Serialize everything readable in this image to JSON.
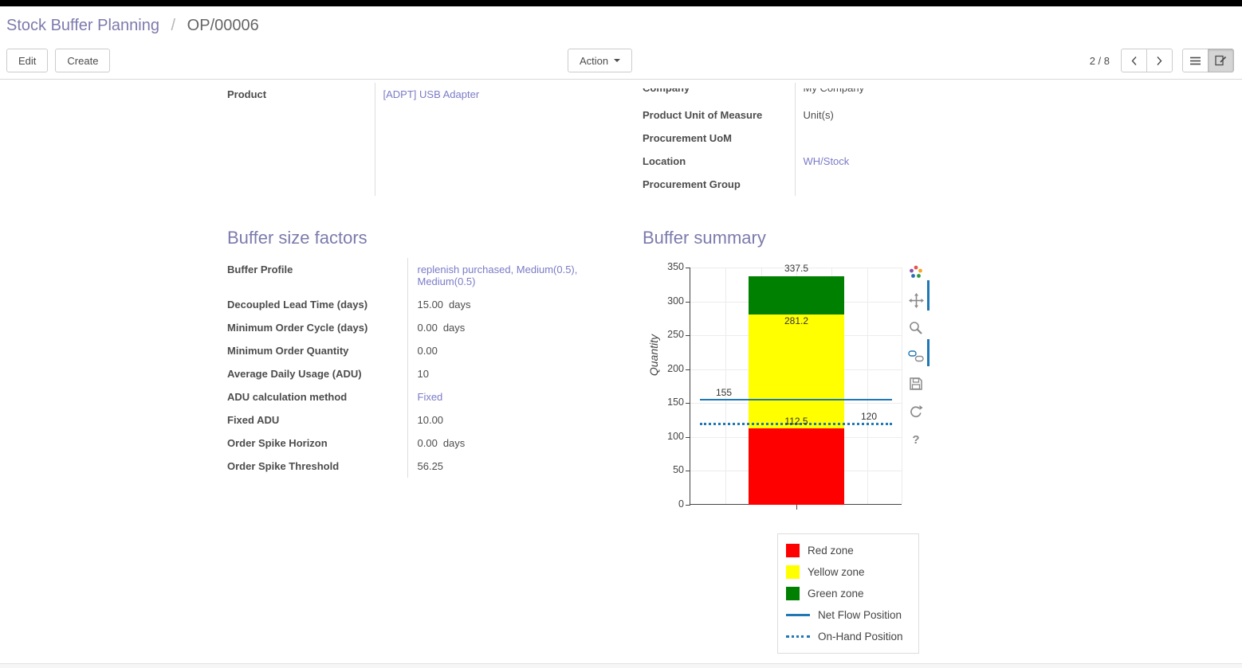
{
  "breadcrumb": {
    "parent": "Stock Buffer Planning",
    "separator": "/",
    "current": "OP/00006"
  },
  "control_panel": {
    "edit_label": "Edit",
    "create_label": "Create",
    "action_label": "Action",
    "pager_value": "2 / 8"
  },
  "form": {
    "general_left": [
      {
        "label": "Product",
        "value": "[ADPT] USB Adapter",
        "link": true
      }
    ],
    "general_right": [
      {
        "label": "Company",
        "value": "My Company",
        "clipped": true
      },
      {
        "label": "Product Unit of Measure",
        "value": "Unit(s)"
      },
      {
        "label": "Procurement UoM",
        "value": ""
      },
      {
        "label": "Location",
        "value": "WH/Stock",
        "link": true
      },
      {
        "label": "Procurement Group",
        "value": ""
      }
    ],
    "factors": {
      "title": "Buffer size factors",
      "rows": [
        {
          "label": "Buffer Profile",
          "value": "replenish purchased, Medium(0.5), Medium(0.5)",
          "link": true
        },
        {
          "label": "Decoupled Lead Time (days)",
          "value": "15.00",
          "suffix": "days"
        },
        {
          "label": "Minimum Order Cycle (days)",
          "value": "0.00",
          "suffix": "days"
        },
        {
          "label": "Minimum Order Quantity",
          "value": "0.00"
        },
        {
          "label": "Average Daily Usage (ADU)",
          "value": "10"
        },
        {
          "label": "ADU calculation method",
          "value": "Fixed",
          "link": true
        },
        {
          "label": "Fixed ADU",
          "value": "10.00"
        },
        {
          "label": "Order Spike Horizon",
          "value": "0.00",
          "suffix": "days"
        },
        {
          "label": "Order Spike Threshold",
          "value": "56.25"
        }
      ]
    },
    "summary": {
      "title": "Buffer summary"
    }
  },
  "chart_data": {
    "type": "bar",
    "title": "",
    "xlabel": "",
    "ylabel": "Quantity",
    "ylim": [
      0,
      350
    ],
    "yticks": [
      0,
      50,
      100,
      150,
      200,
      250,
      300,
      350
    ],
    "grid": true,
    "zones": [
      {
        "name": "Red zone",
        "from": 0,
        "to": 112.5,
        "color": "#ff0000"
      },
      {
        "name": "Yellow zone",
        "from": 112.5,
        "to": 281.25,
        "color": "#ffff00"
      },
      {
        "name": "Green zone",
        "from": 281.25,
        "to": 337.5,
        "color": "#008000"
      }
    ],
    "lines": [
      {
        "name": "Net Flow Position",
        "value": 155,
        "style": "solid",
        "color": "#1f77b4"
      },
      {
        "name": "On-Hand Position",
        "value": 120,
        "style": "dotted",
        "color": "#1f77b4"
      }
    ],
    "annotations": [
      {
        "text": "337.5",
        "value": 337.5,
        "position": "top-center"
      },
      {
        "text": "281.2",
        "value": 281.25,
        "position": "below-center"
      },
      {
        "text": "155",
        "value": 155,
        "position": "left-above"
      },
      {
        "text": "112.5",
        "value": 112.5,
        "position": "center-above"
      },
      {
        "text": "120",
        "value": 120,
        "position": "right-above"
      }
    ],
    "legend": [
      "Red zone",
      "Yellow zone",
      "Green zone",
      "Net Flow Position",
      "On-Hand Position"
    ],
    "legend_position": "bottom-right"
  },
  "modebar_icons": [
    "plotly-logo",
    "pan",
    "zoom",
    "hover-compare",
    "save",
    "reset",
    "help"
  ]
}
